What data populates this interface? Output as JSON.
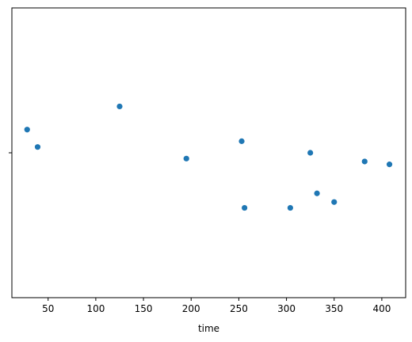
{
  "chart_data": {
    "type": "scatter",
    "title": "",
    "xlabel": "time",
    "ylabel": "",
    "xlim": [
      12,
      425
    ],
    "ylim": [
      -0.5,
      0.5
    ],
    "x_ticks": [
      50,
      100,
      150,
      200,
      250,
      300,
      350,
      400
    ],
    "x_tick_labels": [
      "50",
      "100",
      "150",
      "200",
      "250",
      "300",
      "350",
      "400"
    ],
    "y_ticks": [
      0
    ],
    "y_tick_labels": [
      ""
    ],
    "grid": false,
    "legend": "none",
    "marker_color": "#1f77b4",
    "points": [
      {
        "x": 28,
        "y": 0.08
      },
      {
        "x": 39,
        "y": 0.02
      },
      {
        "x": 125,
        "y": 0.16
      },
      {
        "x": 195,
        "y": -0.02
      },
      {
        "x": 253,
        "y": 0.04
      },
      {
        "x": 256,
        "y": -0.19
      },
      {
        "x": 304,
        "y": -0.19
      },
      {
        "x": 325,
        "y": 0.0
      },
      {
        "x": 332,
        "y": -0.14
      },
      {
        "x": 350,
        "y": -0.17
      },
      {
        "x": 382,
        "y": -0.03
      },
      {
        "x": 408,
        "y": -0.04
      }
    ]
  }
}
